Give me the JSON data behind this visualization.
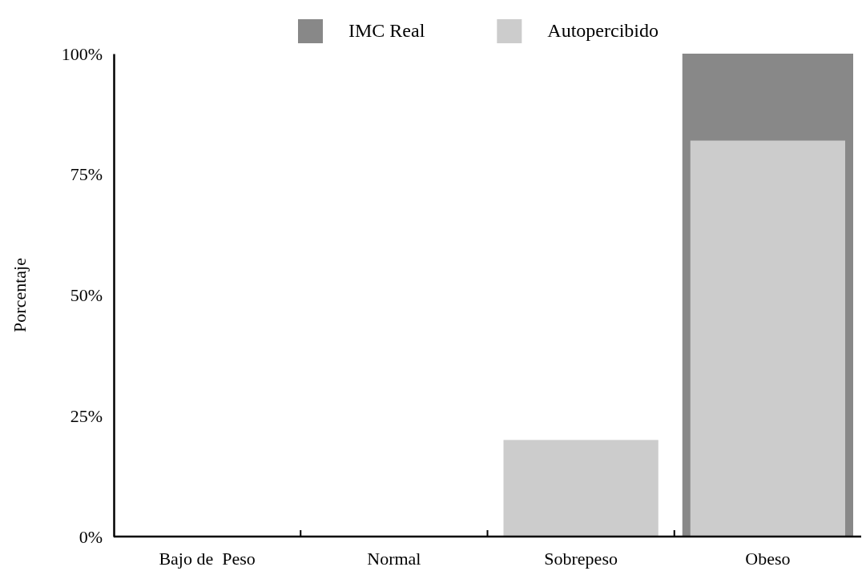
{
  "chart_data": {
    "type": "bar",
    "ylabel": "Porcentaje",
    "categories": [
      "Bajo de  Peso",
      "Normal",
      "Sobrepeso",
      "Obeso"
    ],
    "series": [
      {
        "name": "IMC Real",
        "color": "#888888",
        "values": [
          0,
          0,
          0,
          100
        ]
      },
      {
        "name": "Autopercibido",
        "color": "#cccccc",
        "values": [
          0,
          0,
          20,
          82
        ]
      }
    ],
    "ylim": [
      0,
      100
    ],
    "yticks": [
      {
        "value": 0,
        "label": "0%"
      },
      {
        "value": 25,
        "label": "25%"
      },
      {
        "value": 50,
        "label": "50%"
      },
      {
        "value": 75,
        "label": "75%"
      },
      {
        "value": 100,
        "label": "100%"
      }
    ],
    "legend": "top",
    "grid": false
  }
}
